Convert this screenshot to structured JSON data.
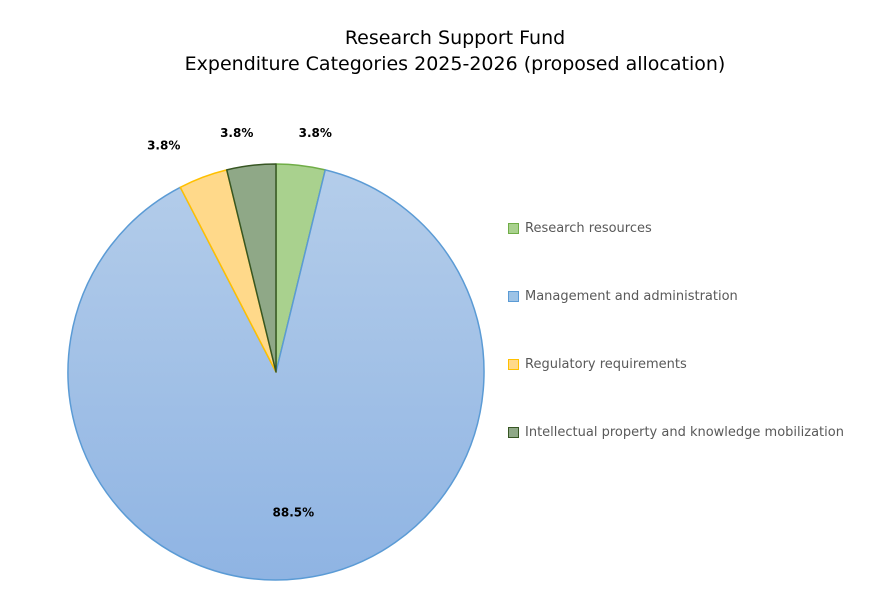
{
  "chart_data": {
    "type": "pie",
    "title": "Research Support Fund",
    "subtitle": "Expenditure Categories 2025-2026 (proposed allocation)",
    "slices": [
      {
        "label": "Research resources",
        "value": 3.8,
        "display": "3.8%",
        "fill": "#a9d18e",
        "stroke": "#70ad47"
      },
      {
        "label": "Management and administration",
        "value": 88.5,
        "display": "88.5%",
        "fill": "#9dc3e6",
        "stroke": "#5b9bd5"
      },
      {
        "label": "Regulatory requirements",
        "value": 3.8,
        "display": "3.8%",
        "fill": "#ffd98a",
        "stroke": "#ffc000"
      },
      {
        "label": "Intellectual property and knowledge mobilization",
        "value": 3.8,
        "display": "3.8%",
        "fill": "#8fa887",
        "stroke": "#375623"
      }
    ],
    "legend_position": "right"
  }
}
